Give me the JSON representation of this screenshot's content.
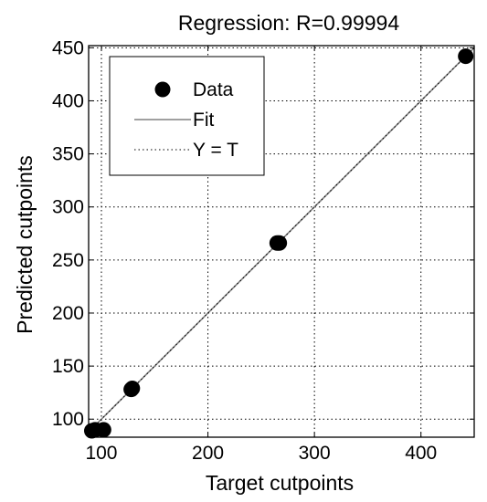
{
  "chart_data": {
    "type": "scatter",
    "title": "Regression: R=0.99994",
    "xlabel": "Target cutpoints",
    "ylabel": "Predicted cutpoints",
    "xlim": [
      88,
      450
    ],
    "ylim": [
      83,
      452
    ],
    "xticks": [
      100,
      200,
      300,
      400
    ],
    "yticks": [
      100,
      150,
      200,
      250,
      300,
      350,
      400,
      450
    ],
    "grid": true,
    "legend_position": "top-left",
    "legend": [
      {
        "label": "Data",
        "kind": "marker"
      },
      {
        "label": "Fit",
        "kind": "line"
      },
      {
        "label": "Y = T",
        "kind": "dotted-line"
      }
    ],
    "series": [
      {
        "name": "Data",
        "points": [
          {
            "x": 91,
            "y": 89
          },
          {
            "x": 94,
            "y": 90
          },
          {
            "x": 102,
            "y": 90
          },
          {
            "x": 128,
            "y": 128
          },
          {
            "x": 129,
            "y": 129
          },
          {
            "x": 265,
            "y": 266
          },
          {
            "x": 267,
            "y": 266
          },
          {
            "x": 442,
            "y": 442
          }
        ]
      },
      {
        "name": "Fit",
        "line": [
          {
            "x": 88,
            "y": 88
          },
          {
            "x": 450,
            "y": 450
          }
        ]
      },
      {
        "name": "Y = T",
        "line": [
          {
            "x": 88,
            "y": 88
          },
          {
            "x": 450,
            "y": 450
          }
        ]
      }
    ],
    "colors": {
      "marker": "#000000",
      "fit": "#808080",
      "identity": "#000000",
      "grid": "#000000",
      "background": "#ffffff"
    }
  }
}
